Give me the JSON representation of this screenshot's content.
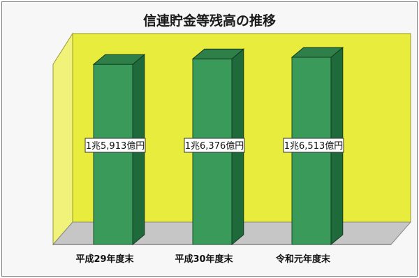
{
  "chart_data": {
    "type": "bar",
    "title": "信連貯金等残高の推移",
    "categories": [
      "平成29年度末",
      "平成30年度末",
      "令和元年度末"
    ],
    "values": [
      15913,
      16376,
      16513
    ],
    "unit": "億円",
    "value_labels": [
      "1兆5,913億円",
      "1兆6,376億円",
      "1兆6,513億円"
    ],
    "grid": false,
    "legend": "none",
    "colors": {
      "bar_front": "#3a9a5a",
      "bar_side": "#1f6a3a",
      "bar_top": "#2e8048",
      "wall": "#e8ec3c",
      "floor": "#c6c6c6",
      "left_wall": "#f0f27a"
    }
  }
}
